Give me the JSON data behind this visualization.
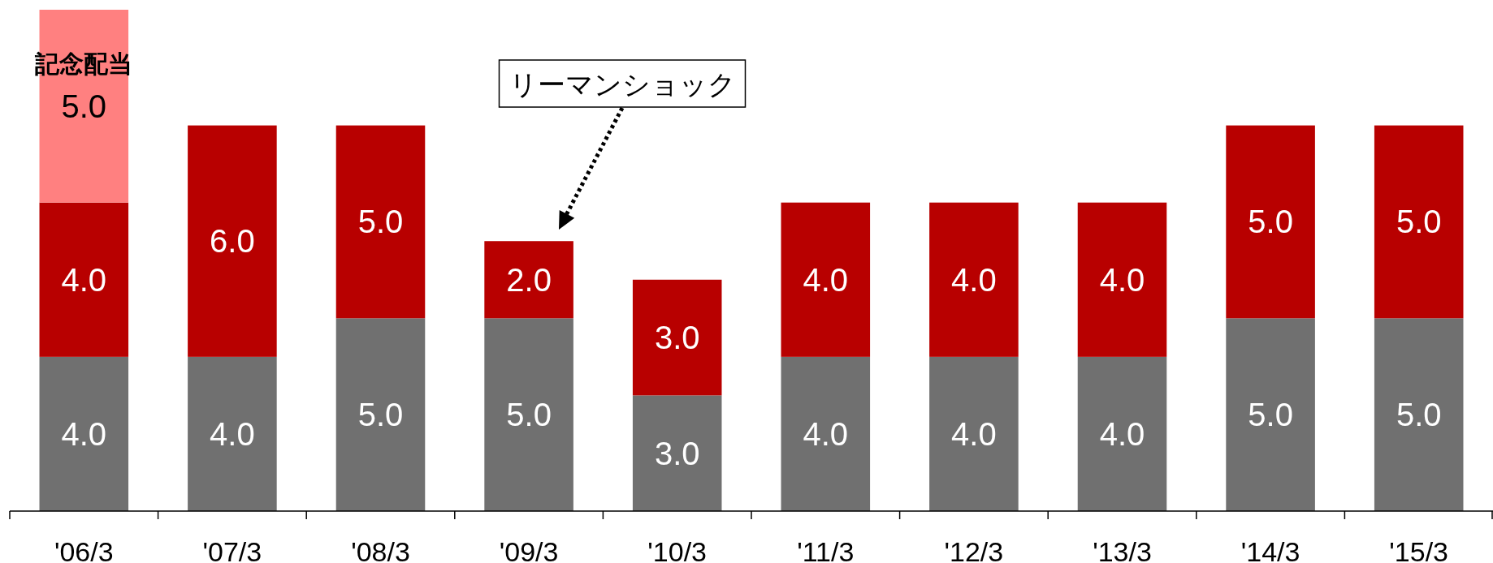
{
  "chart_data": {
    "type": "bar",
    "stacked": true,
    "categories": [
      "'06/3",
      "'07/3",
      "'08/3",
      "'09/3",
      "'10/3",
      "'11/3",
      "'12/3",
      "'13/3",
      "'14/3",
      "'15/3"
    ],
    "series": [
      {
        "color": "#707070",
        "values": [
          4,
          4,
          5,
          5,
          3,
          4,
          4,
          4,
          5,
          5
        ],
        "value_labels": [
          "4.0",
          "4.0",
          "5.0",
          "5.0",
          "3.0",
          "4.0",
          "4.0",
          "4.0",
          "5.0",
          "5.0"
        ]
      },
      {
        "color": "#b80000",
        "values": [
          4,
          6,
          5,
          2,
          3,
          4,
          4,
          4,
          5,
          5
        ],
        "value_labels": [
          "4.0",
          "6.0",
          "5.0",
          "2.0",
          "3.0",
          "4.0",
          "4.0",
          "4.0",
          "5.0",
          "5.0"
        ]
      },
      {
        "name": "記念配当",
        "color": "#ff8080",
        "values": [
          5,
          null,
          null,
          null,
          null,
          null,
          null,
          null,
          null,
          null
        ],
        "value_labels": [
          "5.0",
          null,
          null,
          null,
          null,
          null,
          null,
          null,
          null,
          null
        ]
      }
    ],
    "annotations": [
      "リーマンショック"
    ]
  }
}
